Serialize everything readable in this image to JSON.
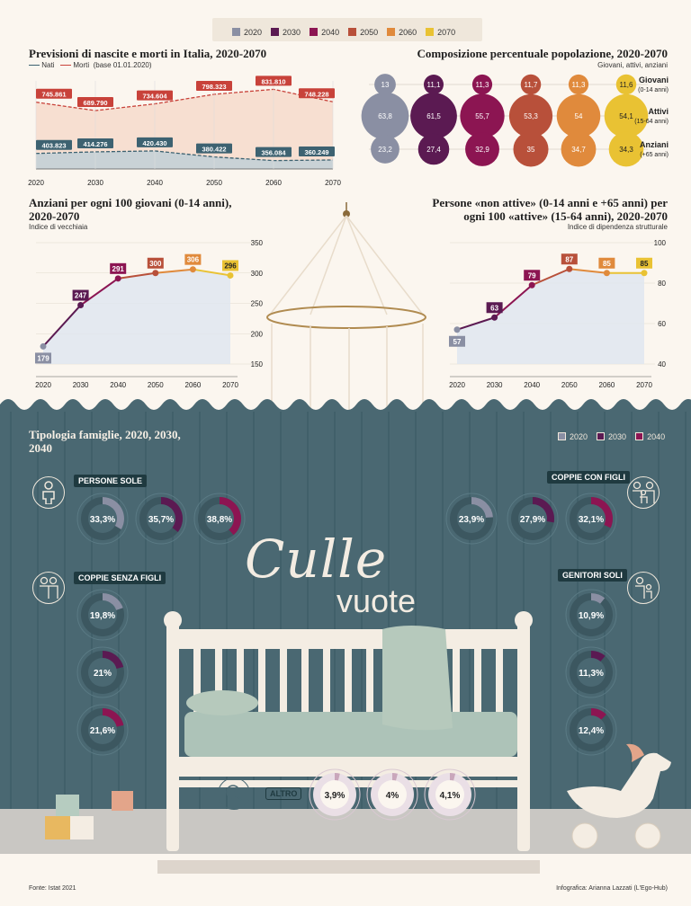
{
  "colors": {
    "c2020": "#8a8fa3",
    "c2030": "#5b1a52",
    "c2040": "#8c1552",
    "c2050": "#b8503a",
    "c2060": "#e08a3c",
    "c2070": "#e9c233",
    "nati": "#3d6271",
    "morti": "#c8423a",
    "teal_bg": "#4a6872",
    "cream": "#fbf6ef"
  },
  "legend_top": [
    "2020",
    "2030",
    "2040",
    "2050",
    "2060",
    "2070"
  ],
  "chart_data": [
    {
      "type": "line",
      "title": "Previsioni di nascite e morti in Italia, 2020-2070",
      "note": "(base 01.01.2020)",
      "x": [
        "2020",
        "2030",
        "2040",
        "2050",
        "2060",
        "2070"
      ],
      "series": [
        {
          "name": "Nati",
          "values": [
            403823,
            414276,
            420430,
            380422,
            356084,
            360249
          ],
          "labels": [
            "403.823",
            "414.276",
            "420.430",
            "380.422",
            "356.084",
            "360.249"
          ]
        },
        {
          "name": "Morti",
          "values": [
            745861,
            689790,
            734604,
            798323,
            831810,
            748228
          ],
          "labels": [
            "745.861",
            "689.790",
            "734.604",
            "798.323",
            "831.810",
            "748.228"
          ]
        }
      ]
    },
    {
      "type": "bubble",
      "title": "Composizione percentuale popolazione, 2020-2070",
      "subtitle": "Giovani, attivi, anziani",
      "x": [
        "2020",
        "2030",
        "2040",
        "2050",
        "2060",
        "2070"
      ],
      "rows": [
        {
          "name": "Giovani",
          "range": "(0-14 anni)",
          "values": [
            "13",
            "11,1",
            "11,3",
            "11,7",
            "11,3",
            "11,6"
          ]
        },
        {
          "name": "Attivi",
          "range": "(15-64 anni)",
          "values": [
            "63,8",
            "61,5",
            "55,7",
            "53,3",
            "54",
            "54,1"
          ]
        },
        {
          "name": "Anziani",
          "range": "(+65 anni)",
          "values": [
            "23,2",
            "27,4",
            "32,9",
            "35",
            "34,7",
            "34,3"
          ]
        }
      ]
    },
    {
      "type": "area",
      "title": "Anziani per ogni 100 giovani (0-14 anni), 2020-2070",
      "subtitle": "Indice di vecchiaia",
      "x": [
        "2020",
        "2030",
        "2040",
        "2050",
        "2060",
        "2070"
      ],
      "values": [
        179,
        247,
        291,
        300,
        306,
        296
      ],
      "ylim": [
        150,
        350
      ],
      "yticks": [
        "150",
        "200",
        "250",
        "300",
        "350"
      ]
    },
    {
      "type": "area",
      "title": "Persone «non attive» (0-14 anni e +65 anni) per ogni 100 «attive» (15-64 anni), 2020-2070",
      "subtitle": "Indice di dipendenza strutturale",
      "x": [
        "2020",
        "2030",
        "2040",
        "2050",
        "2060",
        "2070"
      ],
      "values": [
        57,
        63,
        79,
        87,
        85,
        85
      ],
      "ylim": [
        40,
        100
      ],
      "yticks": [
        "40",
        "60",
        "80",
        "100"
      ]
    },
    {
      "type": "donut",
      "title": "Tipologia famiglie, 2020, 2030, 2040",
      "legend": [
        "2020",
        "2030",
        "2040"
      ],
      "groups": [
        {
          "name": "PERSONE SOLE",
          "labels": [
            "33,3%",
            "35,7%",
            "38,8%"
          ],
          "values": [
            33.3,
            35.7,
            38.8
          ]
        },
        {
          "name": "COPPIE CON FIGLI",
          "labels": [
            "23,9%",
            "27,9%",
            "32,1%"
          ],
          "values": [
            23.9,
            27.9,
            32.1
          ]
        },
        {
          "name": "COPPIE SENZA FIGLI",
          "labels": [
            "19,8%",
            "21%",
            "21,6%"
          ],
          "values": [
            19.8,
            21,
            21.6
          ]
        },
        {
          "name": "GENITORI SOLI",
          "labels": [
            "10,9%",
            "11,3%",
            "12,4%"
          ],
          "values": [
            10.9,
            11.3,
            12.4
          ]
        },
        {
          "name": "ALTRO",
          "labels": [
            "3,9%",
            "4%",
            "4,1%"
          ],
          "values": [
            3.9,
            4,
            4.1
          ]
        }
      ]
    }
  ],
  "title_main_1": "Culle",
  "title_main_2": "vuote",
  "footer_source": "Fonte: Istat 2021",
  "footer_credit": "Infografica: Arianna Lazzati (L'Ego-Hub)"
}
